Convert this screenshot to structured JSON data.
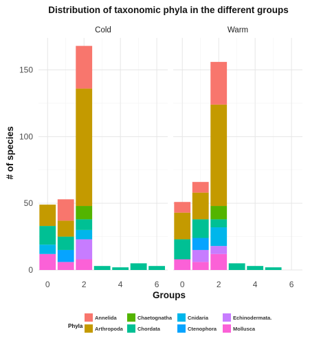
{
  "chart_data": {
    "type": "bar",
    "stacked": true,
    "title": "Distribution of taxonomic phyla in the different groups",
    "xlabel": "Groups",
    "ylabel": "# of species",
    "xlim": [
      -0.5,
      6.6
    ],
    "ylim": [
      0,
      174
    ],
    "x_ticks": [
      0,
      2,
      4,
      6
    ],
    "y_ticks": [
      0,
      50,
      100,
      150
    ],
    "grid": true,
    "legend": {
      "title": "Phyla",
      "position": "bottom",
      "entries": [
        {
          "name": "Annelida",
          "color": "#F8766D"
        },
        {
          "name": "Arthropoda",
          "color": "#C49A00"
        },
        {
          "name": "Chaetognatha",
          "color": "#53B400"
        },
        {
          "name": "Chordata",
          "color": "#00C094"
        },
        {
          "name": "Cnidaria",
          "color": "#00B6EB"
        },
        {
          "name": "Ctenophora",
          "color": "#06A4FF"
        },
        {
          "name": "Echinodermata.",
          "color": "#C77CFF"
        },
        {
          "name": "Mollusca",
          "color": "#FB61D7"
        }
      ]
    },
    "stack_order": [
      "Mollusca",
      "Echinodermata.",
      "Ctenophora",
      "Cnidaria",
      "Chordata",
      "Chaetognatha",
      "Arthropoda",
      "Annelida"
    ],
    "panels": [
      {
        "label": "Cold",
        "bars": [
          {
            "x": 0,
            "segments": {
              "Mollusca": 12,
              "Cnidaria": 7,
              "Chordata": 14,
              "Arthropoda": 16
            }
          },
          {
            "x": 1,
            "segments": {
              "Mollusca": 6,
              "Ctenophora": 9,
              "Chordata": 10,
              "Arthropoda": 12,
              "Annelida": 16
            }
          },
          {
            "x": 2,
            "segments": {
              "Mollusca": 8,
              "Echinodermata.": 15,
              "Cnidaria": 7,
              "Chordata": 8,
              "Chaetognatha": 10,
              "Arthropoda": 88,
              "Annelida": 32
            }
          },
          {
            "x": 3,
            "segments": {
              "Chordata": 3
            }
          },
          {
            "x": 4,
            "segments": {
              "Chordata": 2
            }
          },
          {
            "x": 5,
            "segments": {
              "Chordata": 5
            }
          },
          {
            "x": 6,
            "segments": {
              "Chordata": 3
            }
          }
        ]
      },
      {
        "label": "Warm",
        "bars": [
          {
            "x": 0,
            "segments": {
              "Mollusca": 8,
              "Chordata": 15,
              "Arthropoda": 20,
              "Annelida": 8
            }
          },
          {
            "x": 1,
            "segments": {
              "Mollusca": 6,
              "Echinodermata.": 9,
              "Ctenophora": 9,
              "Chordata": 14,
              "Arthropoda": 20,
              "Annelida": 8
            }
          },
          {
            "x": 2,
            "segments": {
              "Mollusca": 12,
              "Echinodermata.": 6,
              "Cnidaria": 14,
              "Chordata": 6,
              "Chaetognatha": 10,
              "Arthropoda": 76,
              "Annelida": 32
            }
          },
          {
            "x": 3,
            "segments": {
              "Chordata": 5
            }
          },
          {
            "x": 4,
            "segments": {
              "Chordata": 3
            }
          },
          {
            "x": 5,
            "segments": {
              "Chordata": 2
            }
          }
        ]
      }
    ]
  }
}
